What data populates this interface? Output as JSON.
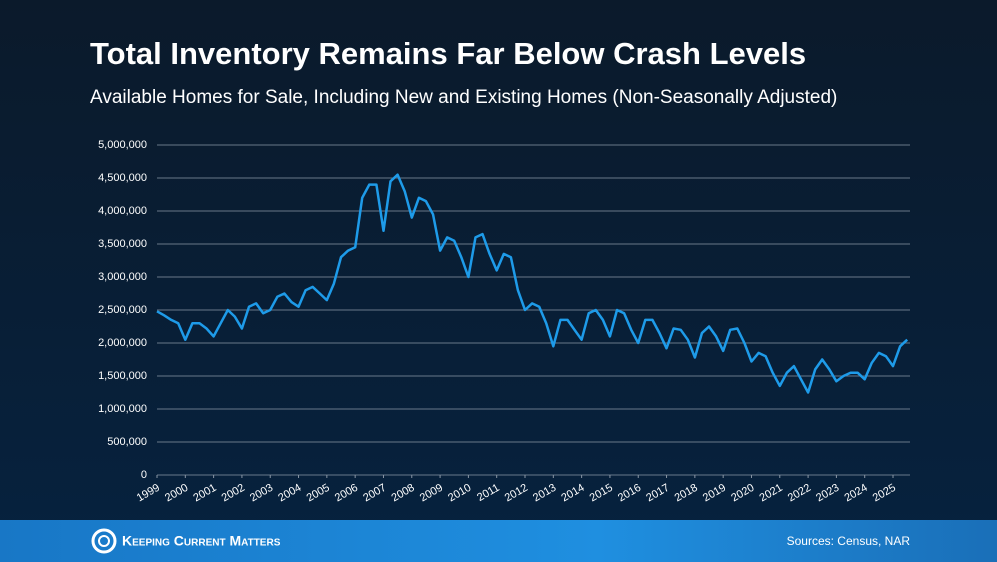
{
  "chart_data": {
    "type": "line",
    "title": "Total Inventory Remains Far Below Crash Levels",
    "subtitle": "Available Homes for Sale, Including New and Existing Homes (Non-Seasonally Adjusted)",
    "brand": "Keeping Current Matters",
    "source": "Sources: Census, NAR",
    "color": "#1e9be9",
    "grid": true,
    "x": [
      1999,
      1999.25,
      1999.5,
      1999.75,
      2000,
      2000.25,
      2000.5,
      2000.75,
      2001,
      2001.25,
      2001.5,
      2001.75,
      2002,
      2002.25,
      2002.5,
      2002.75,
      2003,
      2003.25,
      2003.5,
      2003.75,
      2004,
      2004.25,
      2004.5,
      2004.75,
      2005,
      2005.25,
      2005.5,
      2005.75,
      2006,
      2006.25,
      2006.5,
      2006.75,
      2007,
      2007.25,
      2007.5,
      2007.75,
      2008,
      2008.25,
      2008.5,
      2008.75,
      2009,
      2009.25,
      2009.5,
      2009.75,
      2010,
      2010.25,
      2010.5,
      2010.75,
      2011,
      2011.25,
      2011.5,
      2011.75,
      2012,
      2012.25,
      2012.5,
      2012.75,
      2013,
      2013.25,
      2013.5,
      2013.75,
      2014,
      2014.25,
      2014.5,
      2014.75,
      2015,
      2015.25,
      2015.5,
      2015.75,
      2016,
      2016.25,
      2016.5,
      2016.75,
      2017,
      2017.25,
      2017.5,
      2017.75,
      2018,
      2018.25,
      2018.5,
      2018.75,
      2019,
      2019.25,
      2019.5,
      2019.75,
      2020,
      2020.25,
      2020.5,
      2020.75,
      2021,
      2021.25,
      2021.5,
      2021.75,
      2022,
      2022.25,
      2022.5,
      2022.75,
      2023,
      2023.25,
      2023.5,
      2023.75,
      2024,
      2024.25,
      2024.5,
      2024.75,
      2025,
      2025.25,
      2025.5
    ],
    "values": [
      2480000,
      2420000,
      2350000,
      2300000,
      2050000,
      2300000,
      2300000,
      2220000,
      2100000,
      2300000,
      2500000,
      2400000,
      2220000,
      2550000,
      2600000,
      2450000,
      2500000,
      2700000,
      2750000,
      2620000,
      2550000,
      2800000,
      2850000,
      2750000,
      2650000,
      2900000,
      3300000,
      3400000,
      3450000,
      4200000,
      4400000,
      4400000,
      3700000,
      4450000,
      4550000,
      4300000,
      3900000,
      4200000,
      4150000,
      3950000,
      3400000,
      3600000,
      3550000,
      3300000,
      3000000,
      3600000,
      3650000,
      3350000,
      3100000,
      3350000,
      3300000,
      2800000,
      2500000,
      2600000,
      2550000,
      2300000,
      1950000,
      2350000,
      2350000,
      2200000,
      2050000,
      2450000,
      2500000,
      2350000,
      2100000,
      2500000,
      2450000,
      2200000,
      2000000,
      2350000,
      2350000,
      2150000,
      1920000,
      2220000,
      2200000,
      2050000,
      1780000,
      2150000,
      2250000,
      2100000,
      1880000,
      2200000,
      2220000,
      2000000,
      1720000,
      1850000,
      1800000,
      1550000,
      1350000,
      1550000,
      1650000,
      1450000,
      1250000,
      1600000,
      1750000,
      1600000,
      1420000,
      1500000,
      1550000,
      1550000,
      1450000,
      1700000,
      1850000,
      1800000,
      1650000,
      1950000,
      2050000
    ],
    "xlim": [
      1999,
      2025.6
    ],
    "xticks": [
      1999,
      2000,
      2001,
      2002,
      2003,
      2004,
      2005,
      2006,
      2007,
      2008,
      2009,
      2010,
      2011,
      2012,
      2013,
      2014,
      2015,
      2016,
      2017,
      2018,
      2019,
      2020,
      2021,
      2022,
      2023,
      2024,
      2025
    ],
    "ylim": [
      0,
      5000000
    ],
    "yticks": [
      0,
      {
        "value": 500000,
        "label": "500,000"
      },
      {
        "value": 1000000,
        "label": "1,000,000"
      },
      {
        "value": 1500000,
        "label": "1,500,000"
      },
      {
        "value": 2000000,
        "label": "2,000,000"
      },
      {
        "value": 2500000,
        "label": "2,500,000"
      },
      {
        "value": 3000000,
        "label": "3,000,000"
      },
      {
        "value": 3500000,
        "label": "3,500,000"
      },
      {
        "value": 4000000,
        "label": "4,000,000"
      },
      {
        "value": 4500000,
        "label": "4,500,000"
      },
      {
        "value": 5000000,
        "label": "5,000,000"
      }
    ]
  }
}
